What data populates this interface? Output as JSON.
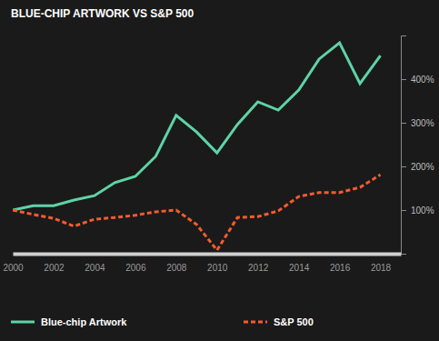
{
  "chart_data": {
    "type": "line",
    "title": "BLUE-CHIP ARTWORK VS S&P 500",
    "x": [
      2000,
      2001,
      2002,
      2003,
      2004,
      2005,
      2006,
      2007,
      2008,
      2009,
      2010,
      2011,
      2012,
      2013,
      2014,
      2015,
      2016,
      2017,
      2018
    ],
    "series": [
      {
        "name": "Blue-chip Artwork",
        "color": "#5ed3a8",
        "line_style": "solid",
        "values": [
          100,
          110,
          110,
          123,
          133,
          163,
          177,
          223,
          317,
          279,
          231,
          296,
          348,
          329,
          375,
          446,
          483,
          390,
          454
        ]
      },
      {
        "name": "S&P 500",
        "color": "#f25c2e",
        "line_style": "dashed",
        "values": [
          100,
          90,
          81,
          63,
          79,
          83,
          88,
          96,
          100,
          67,
          8,
          83,
          85,
          98,
          131,
          140,
          140,
          152,
          181
        ]
      }
    ],
    "xlim": [
      2000,
      2019
    ],
    "xticks": [
      2000,
      2002,
      2004,
      2006,
      2008,
      2010,
      2012,
      2014,
      2016,
      2018
    ],
    "ylim": [
      0,
      500
    ],
    "yticks": [
      {
        "value": 100,
        "label": "100%"
      },
      {
        "value": 200,
        "label": "200%"
      },
      {
        "value": 300,
        "label": "300%"
      },
      {
        "value": 400,
        "label": "400%"
      }
    ],
    "legend": "bottom"
  }
}
